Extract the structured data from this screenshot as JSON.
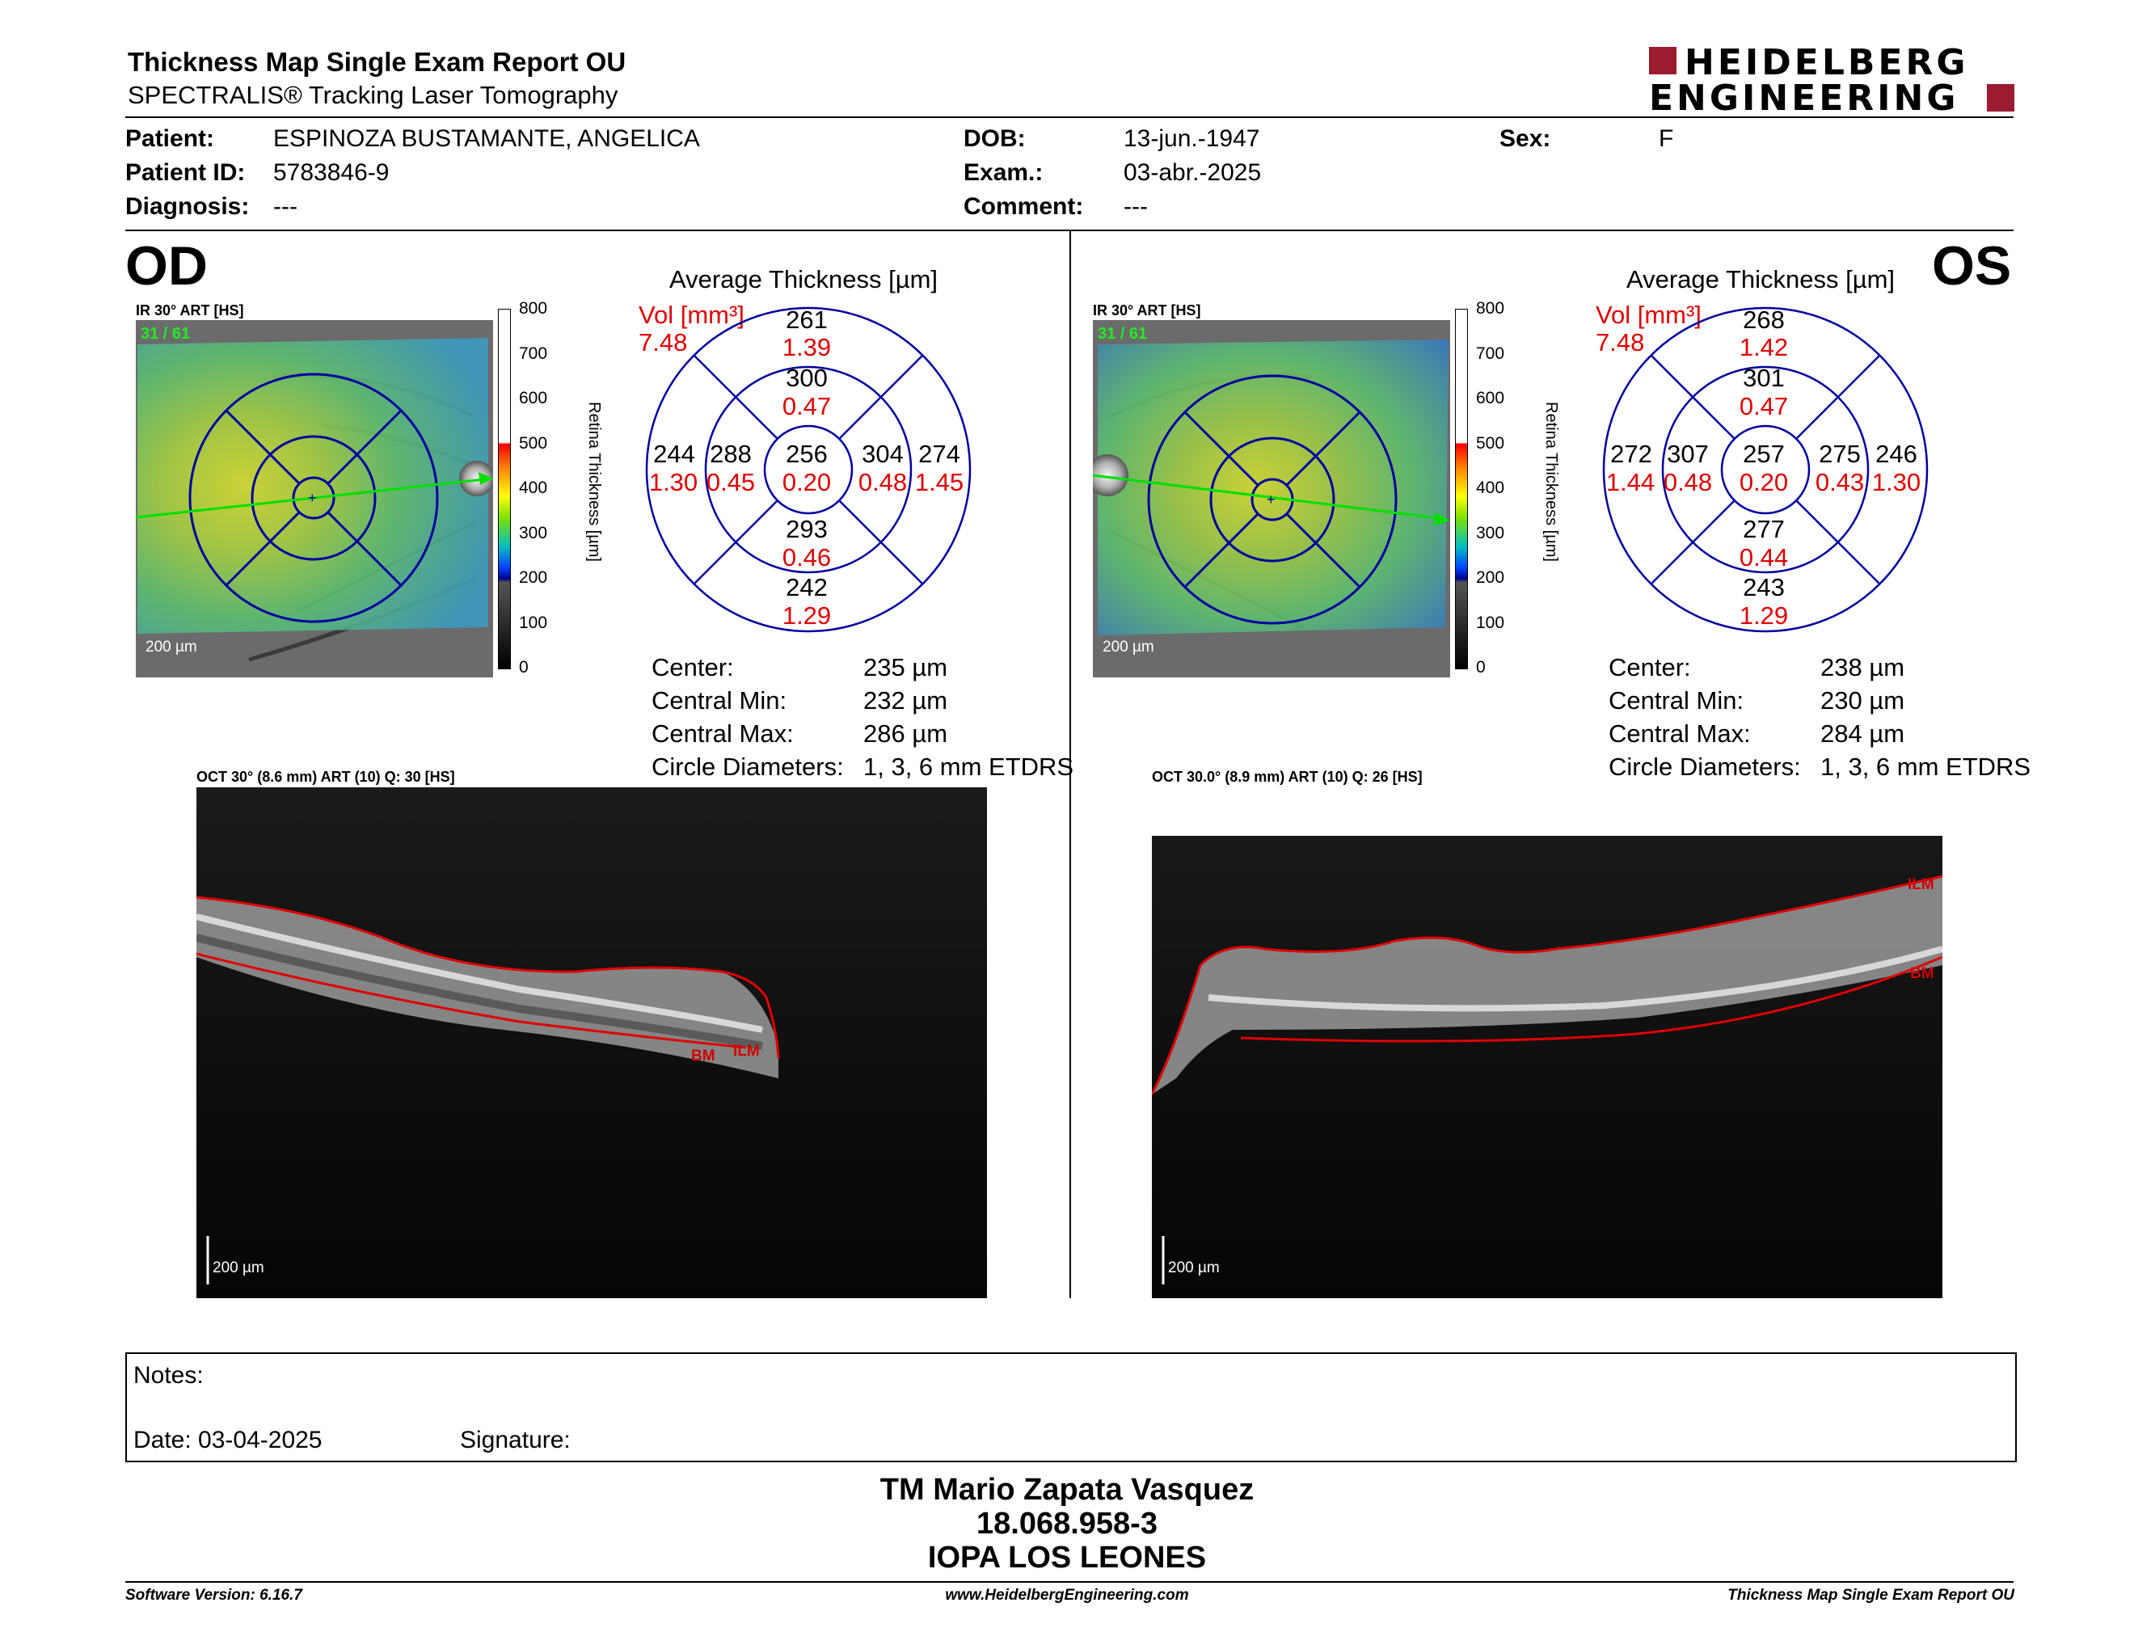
{
  "header": {
    "title": "Thickness Map Single Exam Report OU",
    "subtitle": "SPECTRALIS® Tracking Laser Tomography",
    "logo_line1": "HEIDELBERG",
    "logo_line2": "ENGINEERING",
    "brand_color": "#9b1b30"
  },
  "patient": {
    "patient_label": "Patient:",
    "patient_value": "ESPINOZA BUSTAMANTE, ANGELICA",
    "id_label": "Patient ID:",
    "id_value": "5783846-9",
    "diag_label": "Diagnosis:",
    "diag_value": "---",
    "dob_label": "DOB:",
    "dob_value": "13-jun.-1947",
    "exam_label": "Exam.:",
    "exam_value": "03-abr.-2025",
    "comment_label": "Comment:",
    "comment_value": "---",
    "sex_label": "Sex:",
    "sex_value": "F"
  },
  "od": {
    "eye": "OD",
    "ir_caption": "IR 30° ART [HS]",
    "ir_quality": "31 / 61",
    "scale": "200 µm",
    "avg_title": "Average Thickness [µm]",
    "vol_label": "Vol [mm³]",
    "vol_total": "7.48",
    "grid": {
      "center": {
        "t": "256",
        "v": "0.20"
      },
      "inner_sup": {
        "t": "300",
        "v": "0.47"
      },
      "inner_inf": {
        "t": "293",
        "v": "0.46"
      },
      "inner_left": {
        "t": "288",
        "v": "0.45"
      },
      "inner_right": {
        "t": "304",
        "v": "0.48"
      },
      "outer_sup": {
        "t": "261",
        "v": "1.39"
      },
      "outer_inf": {
        "t": "242",
        "v": "1.29"
      },
      "outer_left": {
        "t": "244",
        "v": "1.30"
      },
      "outer_right": {
        "t": "274",
        "v": "1.45"
      }
    },
    "stats": [
      {
        "label": "Center:",
        "value": "235 µm"
      },
      {
        "label": "Central Min:",
        "value": "232 µm"
      },
      {
        "label": "Central Max:",
        "value": "286 µm"
      },
      {
        "label": "Circle Diameters:",
        "value": "1, 3, 6 mm ETDRS"
      }
    ],
    "oct_caption": "OCT 30° (8.6 mm) ART (10) Q: 30 [HS]",
    "oct_scale": "200 µm",
    "ilm": "ILM",
    "bm": "BM"
  },
  "os": {
    "eye": "OS",
    "ir_caption": "IR 30° ART [HS]",
    "ir_quality": "31 / 61",
    "scale": "200 µm",
    "avg_title": "Average Thickness [µm]",
    "vol_label": "Vol [mm³]",
    "vol_total": "7.48",
    "grid": {
      "center": {
        "t": "257",
        "v": "0.20"
      },
      "inner_sup": {
        "t": "301",
        "v": "0.47"
      },
      "inner_inf": {
        "t": "277",
        "v": "0.44"
      },
      "inner_left": {
        "t": "307",
        "v": "0.48"
      },
      "inner_right": {
        "t": "275",
        "v": "0.43"
      },
      "outer_sup": {
        "t": "268",
        "v": "1.42"
      },
      "outer_inf": {
        "t": "243",
        "v": "1.29"
      },
      "outer_left": {
        "t": "272",
        "v": "1.44"
      },
      "outer_right": {
        "t": "246",
        "v": "1.30"
      }
    },
    "stats": [
      {
        "label": "Center:",
        "value": "238 µm"
      },
      {
        "label": "Central Min:",
        "value": "230 µm"
      },
      {
        "label": "Central Max:",
        "value": "284 µm"
      },
      {
        "label": "Circle Diameters:",
        "value": "1, 3, 6 mm ETDRS"
      }
    ],
    "oct_caption": "OCT 30.0° (8.9 mm) ART (10) Q: 26 [HS]",
    "oct_scale": "200 µm",
    "ilm": "ILM",
    "bm": "BM"
  },
  "colorbar": {
    "ticks": [
      "800",
      "700",
      "600",
      "500",
      "400",
      "300",
      "200",
      "100",
      "0"
    ],
    "label": "Retina Thickness [µm]"
  },
  "notes": {
    "notes_label": "Notes:",
    "date_label": "Date: 03-04-2025",
    "signature_label": "Signature:"
  },
  "signature": {
    "name": "TM Mario Zapata Vasquez",
    "rut": "18.068.958-3",
    "org": "IOPA LOS LEONES"
  },
  "footer": {
    "software": "Software Version: 6.16.7",
    "website": "www.HeidelbergEngineering.com",
    "report": "Thickness Map Single Exam Report OU"
  }
}
